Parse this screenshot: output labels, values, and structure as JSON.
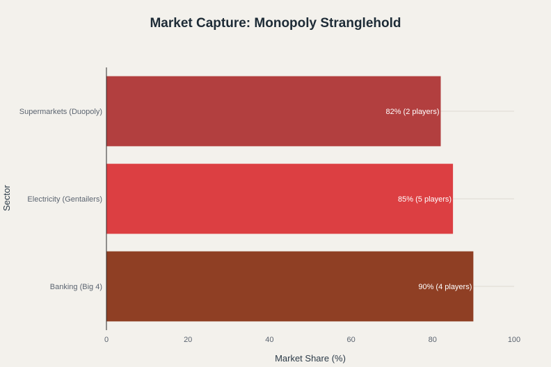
{
  "chart_data": {
    "type": "bar",
    "orientation": "horizontal",
    "title": "Market Capture: Monopoly Stranglehold",
    "xlabel": "Market Share (%)",
    "ylabel": "Sector",
    "xlim": [
      0,
      100
    ],
    "xticks": [
      0,
      20,
      40,
      60,
      80,
      100
    ],
    "grid": true,
    "categories": [
      "Supermarkets (Duopoly)",
      "Electricity (Gentailers)",
      "Banking (Big 4)"
    ],
    "values": [
      82,
      85,
      90
    ],
    "data_labels": [
      "82% (2 players)",
      "85% (5 players)",
      "90% (4 players)"
    ],
    "colors": [
      "#b23f3f",
      "#dc3f42",
      "#8f3f24"
    ],
    "background": "#f3f1ec"
  }
}
